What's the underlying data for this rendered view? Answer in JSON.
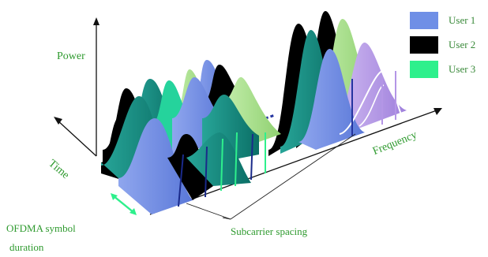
{
  "labels": {
    "power": "Power",
    "time": "Time",
    "frequency": "Frequency",
    "subcarrier_spacing": "Subcarrier spacing",
    "symbol_line1": "OFDMA symbol",
    "symbol_line2": "duration"
  },
  "legend": [
    {
      "name": "User 1",
      "color": "#6f8fe6"
    },
    {
      "name": "User 2",
      "color": "#000000"
    },
    {
      "name": "User 3",
      "color": "#2ef08c"
    }
  ],
  "colors": {
    "label_green": "#2e9a2e",
    "teal": "#0f8c80",
    "black": "#000000",
    "blue": "#6f8fe6",
    "light_green": "#a6e08a",
    "purple": "#b496e6",
    "dark_blue": "#1a2a8a",
    "marker_green": "#2ef08c"
  }
}
